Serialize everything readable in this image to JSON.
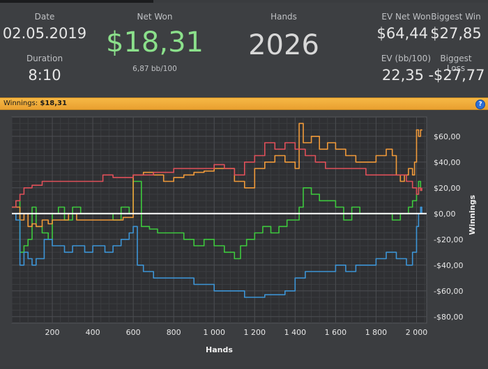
{
  "summary": {
    "date_label": "Date",
    "date_value": "02.05.2019",
    "duration_label": "Duration",
    "duration_value": "8:10",
    "net_won_label": "Net Won",
    "net_won_value": "$18,31",
    "net_won_sub": "6,87 bb/100",
    "hands_label": "Hands",
    "hands_value": "2026",
    "ev_net_won_label": "EV Net Won",
    "ev_net_won_value": "$64,44",
    "biggest_win_label": "Biggest Win",
    "biggest_win_value": "$27,85",
    "ev_bb100_label": "EV (bb/100)",
    "ev_bb100_value": "22,35",
    "biggest_loss_label": "Biggest Loss",
    "biggest_loss_value": "-$27,77"
  },
  "winnings_bar": {
    "label": "Winnings:",
    "value": "$18,31",
    "help_icon": "?"
  },
  "chart_data": {
    "type": "line",
    "xlabel": "Hands",
    "ylabel": "Winnings",
    "xlim": [
      0,
      2050
    ],
    "ylim": [
      -85,
      75
    ],
    "x_ticks": [
      200,
      400,
      600,
      800,
      1000,
      1200,
      1400,
      1600,
      1800,
      2000
    ],
    "x_tick_labels": [
      "200",
      "400",
      "600",
      "800",
      "1 000",
      "1 200",
      "1 400",
      "1 600",
      "1 800",
      "2 000"
    ],
    "y_ticks": [
      60,
      40,
      20,
      0,
      -20,
      -40,
      -60,
      -80
    ],
    "y_tick_labels": [
      "$60,00",
      "$40,00",
      "$20,00",
      "$0,00",
      "-$20,00",
      "-$40,00",
      "-$60,00",
      "-$80,00"
    ],
    "grid": true,
    "colors": {
      "green": "#3ec93e",
      "orange": "#f09a3a",
      "red": "#e0505a",
      "blue": "#3d95d6",
      "zero_line": "#ffffff"
    },
    "series": [
      {
        "color_key": "green",
        "x": [
          0,
          20,
          40,
          60,
          80,
          100,
          120,
          150,
          180,
          200,
          230,
          260,
          300,
          340,
          380,
          420,
          460,
          500,
          540,
          580,
          600,
          640,
          680,
          720,
          760,
          800,
          850,
          900,
          950,
          1000,
          1050,
          1100,
          1130,
          1160,
          1200,
          1240,
          1280,
          1320,
          1360,
          1400,
          1420,
          1440,
          1480,
          1520,
          1560,
          1600,
          1640,
          1680,
          1720,
          1760,
          1800,
          1840,
          1880,
          1920,
          1960,
          1980,
          2000,
          2010,
          2020,
          2026
        ],
        "values": [
          5,
          10,
          -30,
          -25,
          -20,
          5,
          -10,
          -15,
          -20,
          0,
          5,
          -5,
          5,
          0,
          0,
          0,
          0,
          -5,
          5,
          0,
          25,
          -10,
          -12,
          -15,
          -15,
          -15,
          -20,
          -25,
          -20,
          -25,
          -30,
          -35,
          -25,
          -20,
          -15,
          -10,
          -15,
          -10,
          -5,
          -5,
          5,
          20,
          15,
          10,
          10,
          5,
          -5,
          5,
          0,
          0,
          0,
          0,
          -5,
          0,
          5,
          10,
          15,
          25,
          18,
          18.31
        ]
      },
      {
        "color_key": "orange",
        "x": [
          0,
          20,
          40,
          60,
          80,
          100,
          120,
          150,
          180,
          200,
          240,
          280,
          320,
          360,
          400,
          450,
          500,
          550,
          600,
          650,
          700,
          750,
          800,
          850,
          900,
          950,
          1000,
          1050,
          1100,
          1150,
          1200,
          1250,
          1300,
          1350,
          1400,
          1420,
          1440,
          1480,
          1520,
          1560,
          1600,
          1650,
          1700,
          1750,
          1800,
          1850,
          1880,
          1900,
          1920,
          1940,
          1960,
          1980,
          1990,
          2000,
          2010,
          2020,
          2026
        ],
        "values": [
          5,
          5,
          -5,
          0,
          -10,
          -8,
          -10,
          -5,
          -8,
          -5,
          -5,
          0,
          -5,
          -5,
          -5,
          -5,
          -5,
          -3,
          30,
          32,
          30,
          25,
          28,
          30,
          32,
          33,
          35,
          35,
          25,
          20,
          35,
          40,
          45,
          40,
          35,
          70,
          55,
          60,
          50,
          55,
          50,
          45,
          40,
          40,
          45,
          50,
          45,
          30,
          25,
          30,
          35,
          30,
          40,
          65,
          60,
          65,
          64.44
        ]
      },
      {
        "color_key": "red",
        "x": [
          0,
          20,
          40,
          60,
          100,
          150,
          200,
          250,
          300,
          350,
          400,
          450,
          500,
          550,
          600,
          650,
          700,
          750,
          800,
          850,
          900,
          950,
          1000,
          1050,
          1100,
          1150,
          1200,
          1250,
          1300,
          1350,
          1400,
          1450,
          1500,
          1550,
          1600,
          1650,
          1700,
          1750,
          1800,
          1850,
          1900,
          1950,
          1980,
          2000,
          2010,
          2020,
          2026
        ],
        "values": [
          5,
          10,
          15,
          20,
          22,
          25,
          25,
          25,
          25,
          25,
          25,
          30,
          28,
          28,
          30,
          30,
          32,
          32,
          35,
          35,
          35,
          35,
          38,
          35,
          30,
          40,
          45,
          55,
          50,
          55,
          50,
          45,
          40,
          35,
          35,
          35,
          35,
          30,
          30,
          30,
          30,
          25,
          20,
          15,
          20,
          18,
          20
        ]
      },
      {
        "color_key": "blue",
        "x": [
          0,
          20,
          40,
          60,
          80,
          100,
          120,
          160,
          200,
          260,
          300,
          360,
          400,
          460,
          500,
          540,
          580,
          600,
          620,
          650,
          700,
          750,
          800,
          850,
          900,
          950,
          1000,
          1050,
          1100,
          1150,
          1200,
          1250,
          1300,
          1350,
          1400,
          1450,
          1500,
          1550,
          1600,
          1650,
          1700,
          1750,
          1800,
          1850,
          1900,
          1950,
          1980,
          2000,
          2010,
          2020,
          2026
        ],
        "values": [
          0,
          -5,
          -40,
          -30,
          -35,
          -40,
          -35,
          -20,
          -25,
          -30,
          -25,
          -30,
          -25,
          -30,
          -25,
          -20,
          -15,
          -10,
          -40,
          -45,
          -50,
          -50,
          -50,
          -50,
          -55,
          -55,
          -60,
          -60,
          -60,
          -65,
          -65,
          -63,
          -63,
          -60,
          -50,
          -45,
          -45,
          -45,
          -40,
          -45,
          -40,
          -40,
          -35,
          -30,
          -35,
          -40,
          -30,
          -10,
          0,
          5,
          0
        ]
      }
    ]
  }
}
